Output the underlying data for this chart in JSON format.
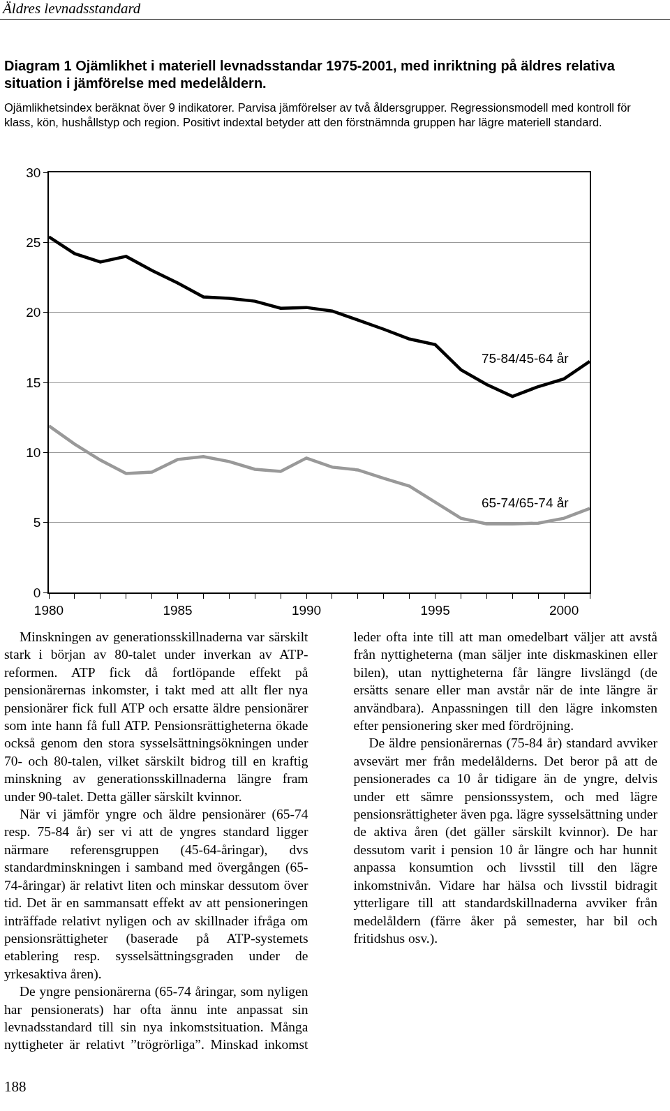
{
  "chart_data": {
    "type": "line",
    "title": "Diagram 1  Ojämlikhet i materiell levnadsstandar 1975-2001, med inriktning på äldres relativa situation i jämförelse med medelåldern.",
    "subtitle": "Ojämlikhetsindex beräknat över 9 indikatorer. Parvisa jämförelser av två åldersgrupper. Regressionsmodell med kontroll för klass, kön, hushållstyp och region. Positivt indextal betyder att den förstnämnda gruppen har lägre materiell standard.",
    "x": [
      1980,
      1981,
      1982,
      1983,
      1984,
      1985,
      1986,
      1987,
      1988,
      1989,
      1990,
      1991,
      1992,
      1993,
      1994,
      1995,
      1996,
      1997,
      1998,
      1999,
      2000,
      2001
    ],
    "series": [
      {
        "name": "75-84/45-64 år",
        "color": "#000000",
        "values": [
          25.4,
          24.2,
          23.6,
          24.0,
          23.0,
          22.1,
          21.1,
          21.0,
          20.8,
          20.3,
          20.35,
          20.1,
          19.45,
          18.8,
          18.1,
          17.7,
          15.9,
          14.85,
          14.0,
          14.7,
          15.25,
          16.5
        ]
      },
      {
        "name": "65-74/65-74 år",
        "color": "#999999",
        "values": [
          11.9,
          10.6,
          9.45,
          8.5,
          8.6,
          9.5,
          9.7,
          9.35,
          8.8,
          8.65,
          9.6,
          8.95,
          8.75,
          8.15,
          7.6,
          6.45,
          5.3,
          4.9,
          4.9,
          4.95,
          5.3,
          6.0
        ]
      }
    ],
    "xlim": [
      1980,
      2001
    ],
    "xticks": [
      1980,
      {
        "value": 1981,
        "label": null
      },
      {
        "value": 1982,
        "label": null
      },
      {
        "value": 1983,
        "label": null
      },
      {
        "value": 1984,
        "label": null
      },
      1985,
      {
        "value": 1986,
        "label": null
      },
      {
        "value": 1987,
        "label": null
      },
      {
        "value": 1988,
        "label": null
      },
      {
        "value": 1989,
        "label": null
      },
      1990,
      {
        "value": 1991,
        "label": null
      },
      {
        "value": 1992,
        "label": null
      },
      {
        "value": 1993,
        "label": null
      },
      {
        "value": 1994,
        "label": null
      },
      1995,
      {
        "value": 1996,
        "label": null
      },
      {
        "value": 1997,
        "label": null
      },
      {
        "value": 1998,
        "label": null
      },
      {
        "value": 1999,
        "label": null
      },
      2000,
      {
        "value": 2001,
        "label": null
      }
    ],
    "ylim": [
      0,
      30
    ],
    "yticks": [
      0,
      5,
      10,
      15,
      20,
      25,
      30
    ],
    "grid": "y",
    "legend": false,
    "marker": "none",
    "line_style": "solid",
    "annotations": [
      "Äldres levnadsstandard",
      "Minskningen av generationsskillnaderna var särskilt stark i början av 80-talet under inverkan av ATP-reformen. ATP fick då fortlöpande effekt på pensionärernas inkomster, i takt med att allt fler nya pensionärer fick full ATP och ersatte äldre pensionärer som inte hann få full ATP. Pensionsrättigheterna ökade också genom den stora sysselsättningsökningen under 70- och 80-talen, vilket särskilt bidrog till en kraftig minskning av generationsskillnaderna längre fram under 90-talet. Detta gäller särskilt kvinnor.",
      "När vi jämför yngre och äldre pensionärer (65-74 resp. 75-84 år) ser vi att de yngres standard ligger närmare referensgruppen (45-64-åringar), dvs standardminskningen i samband med övergången (65-74-åringar) är relativt liten och minskar dessutom över tid. Det är en sammansatt effekt av att pensioneringen inträffade relativt nyligen och av skillnader ifråga om pensionsrättigheter (baserade på ATP-systemets etablering resp. sysselsättningsgraden under de yrkesaktiva åren).",
      "De yngre pensionärerna (65-74 åringar, som nyligen har pensionerats) har ofta ännu inte anpassat sin levnadsstandard till sin nya inkomstsituation. Många nyttigheter är relativt ”trögrörliga”. Minskad inkomst leder ofta inte till att man omedelbart väljer att avstå från nyttigheterna (man säljer inte diskmaskinen eller bilen), utan nyttigheterna får längre livslängd (de ersätts senare eller man avstår när de inte längre är användbara). Anpassningen till den lägre inkomsten efter pensionering sker med fördröjning.",
      "De äldre pensionärernas (75-84 år) standard avviker avsevärt mer från medelålderns. Det beror på att de pensionerades ca 10 år tidigare än de yngre, delvis under ett sämre pensionssystem, och med lägre pensionsrättigheter även pga. lägre sysselsättning under de aktiva åren (det gäller särskilt kvinnor). De har dessutom varit i pension 10 år längre och har hunnit anpassa konsumtion och livsstil till den lägre inkomstnivån. Vidare har hälsa och livsstil bidragit ytterligare till att standardskillnaderna avviker från medelåldern (färre åker på semester, har bil och fritidshus osv.).",
      "188"
    ]
  }
}
